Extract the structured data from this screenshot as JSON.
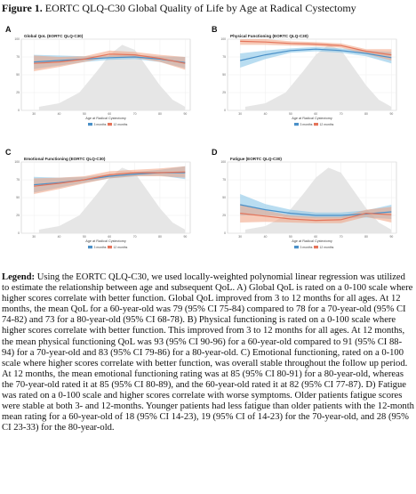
{
  "figure": {
    "label": "Figure 1.",
    "title": "EORTC QLQ-C30 Global Quality of Life by Age at Radical Cystectomy"
  },
  "legend": {
    "label": "Legend:",
    "text": "Using the EORTC QLQ-C30, we used locally-weighted polynomial linear regression was utilized to estimate the relationship between age and subsequent QoL. A) Global QoL is rated on a 0-100 scale where higher scores correlate with better function. Global QoL improved from 3 to 12 months for all ages. At 12 months, the mean QoL for a 60-year-old was 79 (95% CI 75-84) compared to 78 for a 70-year-old (95% CI 74-82) and 73 for a 80-year-old (95% CI 68-78). B) Physical functioning is rated on a 0-100 scale where higher scores correlate with better function. This improved from 3 to 12 months for all ages. At 12 months, the mean physical functioning QoL was 93 (95% CI 90-96) for a 60-year-old compared to 91 (95% CI 88-94) for a 70-year-old and 83 (95% CI 79-86) for a 80-year-old. C) Emotional functioning, rated on a 0-100 scale where higher scores correlate with better function, was overall stable throughout the follow up period. At 12 months, the mean emotional functioning rating was at 85 (95% CI 80-91) for a 80-year-old, whereas the 70-year-old rated it at 85 (95% CI 80-89), and the 60-year-old rated it at 82 (95% CI 77-87). D) Fatigue was rated on a 0-100 scale and higher scores correlate with worse symptoms. Older patients fatigue scores were stable at both 3- and 12-months. Younger patients had less fatigue than older patients with the 12-month mean rating for a 60-year-old of 18 (95% CI 14-23), 19 (95% CI of 14-23) for the 70-year-old, and 28 (95% CI 23-33) for the 80-year-old."
  },
  "colors": {
    "series_3mo": "#4a90c8",
    "series_3mo_band": "#7fc1e6",
    "series_12mo": "#e4745a",
    "series_12mo_band": "#f0a080",
    "density": "#e6e6e6"
  },
  "chart_data": [
    {
      "panel": "A",
      "type": "line",
      "title": "Global QoL (EORTC QLQ-C30)",
      "xlabel": "Age at Radical Cystectomy",
      "ylabel": "",
      "xlim": [
        25,
        92
      ],
      "ylim": [
        0,
        100
      ],
      "x_ticks": [
        "30",
        "40",
        "50",
        "60",
        "70",
        "80",
        "90"
      ],
      "y_ticks": [
        "0",
        "25",
        "50",
        "75",
        "100"
      ],
      "grid": true,
      "legend_position": "bottom",
      "density": {
        "x": [
          32,
          40,
          48,
          55,
          60,
          65,
          70,
          75,
          80,
          85,
          90
        ],
        "y": [
          5,
          10,
          25,
          55,
          78,
          92,
          85,
          60,
          35,
          15,
          5
        ]
      },
      "x": [
        30,
        40,
        50,
        60,
        70,
        80,
        90
      ],
      "series": [
        {
          "name": "3 months",
          "values": [
            68,
            70,
            72,
            74,
            75,
            72,
            67
          ],
          "lower": [
            58,
            63,
            68,
            71,
            72,
            68,
            59
          ],
          "upper": [
            78,
            77,
            76,
            77,
            78,
            76,
            75
          ]
        },
        {
          "name": "12 months",
          "values": [
            66,
            68,
            72,
            79,
            78,
            73,
            66
          ],
          "lower": [
            55,
            61,
            68,
            75,
            74,
            68,
            57
          ],
          "upper": [
            77,
            75,
            76,
            84,
            82,
            78,
            75
          ]
        }
      ]
    },
    {
      "panel": "B",
      "type": "line",
      "title": "Physical Functioning (EORTC QLQ-C30)",
      "xlabel": "Age at Radical Cystectomy",
      "ylabel": "",
      "xlim": [
        25,
        92
      ],
      "ylim": [
        0,
        100
      ],
      "x_ticks": [
        "30",
        "40",
        "50",
        "60",
        "70",
        "80",
        "90"
      ],
      "y_ticks": [
        "0",
        "25",
        "50",
        "75",
        "100"
      ],
      "grid": true,
      "legend_position": "bottom",
      "density": {
        "x": [
          32,
          40,
          48,
          55,
          60,
          65,
          70,
          75,
          80,
          85,
          90
        ],
        "y": [
          5,
          10,
          25,
          55,
          78,
          92,
          85,
          60,
          35,
          15,
          5
        ]
      },
      "x": [
        30,
        40,
        50,
        60,
        70,
        80,
        90
      ],
      "series": [
        {
          "name": "3 months",
          "values": [
            70,
            78,
            84,
            86,
            84,
            80,
            74
          ],
          "lower": [
            60,
            72,
            81,
            83,
            81,
            76,
            66
          ],
          "upper": [
            80,
            84,
            87,
            89,
            87,
            84,
            82
          ]
        },
        {
          "name": "12 months",
          "values": [
            97,
            96,
            94,
            93,
            91,
            83,
            78
          ],
          "lower": [
            92,
            92,
            91,
            90,
            88,
            79,
            70
          ],
          "upper": [
            100,
            100,
            97,
            96,
            94,
            86,
            86
          ]
        }
      ]
    },
    {
      "panel": "C",
      "type": "line",
      "title": "Emotional Functioning (EORTC QLQ-C30)",
      "xlabel": "Age at Radical Cystectomy",
      "ylabel": "",
      "xlim": [
        25,
        92
      ],
      "ylim": [
        0,
        100
      ],
      "x_ticks": [
        "30",
        "40",
        "50",
        "60",
        "70",
        "80",
        "90"
      ],
      "y_ticks": [
        "0",
        "25",
        "50",
        "75",
        "100"
      ],
      "grid": true,
      "legend_position": "bottom",
      "density": {
        "x": [
          32,
          40,
          48,
          55,
          60,
          65,
          70,
          75,
          80,
          85,
          90
        ],
        "y": [
          5,
          10,
          25,
          55,
          78,
          92,
          85,
          60,
          35,
          15,
          5
        ]
      },
      "x": [
        30,
        40,
        50,
        60,
        70,
        80,
        90
      ],
      "series": [
        {
          "name": "3 months",
          "values": [
            68,
            71,
            75,
            80,
            83,
            85,
            85
          ],
          "lower": [
            57,
            64,
            71,
            77,
            80,
            81,
            76
          ],
          "upper": [
            79,
            78,
            79,
            83,
            86,
            89,
            94
          ]
        },
        {
          "name": "12 months",
          "values": [
            66,
            70,
            75,
            82,
            85,
            85,
            86
          ],
          "lower": [
            55,
            62,
            70,
            77,
            80,
            80,
            78
          ],
          "upper": [
            77,
            78,
            80,
            87,
            89,
            91,
            94
          ]
        }
      ]
    },
    {
      "panel": "D",
      "type": "line",
      "title": "Fatigue (EORTC QLQ-C30)",
      "xlabel": "Age at Radical Cystectomy",
      "ylabel": "",
      "xlim": [
        25,
        92
      ],
      "ylim": [
        0,
        100
      ],
      "x_ticks": [
        "30",
        "40",
        "50",
        "60",
        "70",
        "80",
        "90"
      ],
      "y_ticks": [
        "0",
        "25",
        "50",
        "75",
        "100"
      ],
      "grid": true,
      "legend_position": "bottom",
      "density": {
        "x": [
          32,
          40,
          48,
          55,
          60,
          65,
          70,
          75,
          80,
          85,
          90
        ],
        "y": [
          5,
          10,
          25,
          55,
          78,
          92,
          85,
          60,
          35,
          15,
          5
        ]
      },
      "x": [
        30,
        40,
        50,
        60,
        70,
        80,
        90
      ],
      "series": [
        {
          "name": "3 months",
          "values": [
            40,
            33,
            28,
            25,
            25,
            27,
            30
          ],
          "lower": [
            25,
            25,
            23,
            21,
            21,
            22,
            20
          ],
          "upper": [
            55,
            41,
            33,
            29,
            29,
            32,
            40
          ]
        },
        {
          "name": "12 months",
          "values": [
            28,
            24,
            20,
            18,
            19,
            28,
            26
          ],
          "lower": [
            15,
            16,
            15,
            14,
            14,
            23,
            15
          ],
          "upper": [
            41,
            32,
            25,
            23,
            23,
            33,
            37
          ]
        }
      ]
    }
  ]
}
